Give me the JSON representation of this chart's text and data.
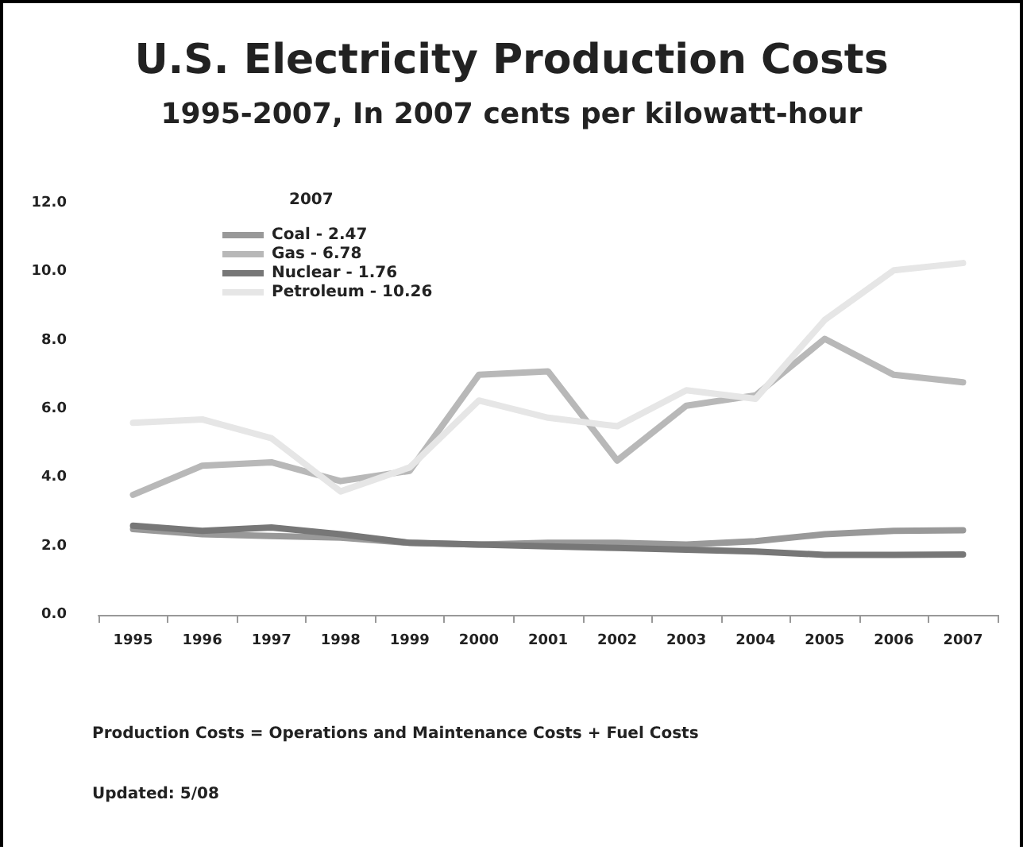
{
  "chart_data": {
    "type": "line",
    "title": "U.S. Electricity Production Costs",
    "subtitle": "1995-2007, In 2007 cents per kilowatt-hour",
    "categories": [
      "1995",
      "1996",
      "1997",
      "1998",
      "1999",
      "2000",
      "2001",
      "2002",
      "2003",
      "2004",
      "2005",
      "2006",
      "2007"
    ],
    "series": [
      {
        "name": "Coal - 2.47",
        "color": "#999999",
        "values": [
          2.5,
          2.35,
          2.3,
          2.25,
          2.1,
          2.05,
          2.1,
          2.1,
          2.05,
          2.15,
          2.35,
          2.45,
          2.47
        ]
      },
      {
        "name": "Gas - 6.78",
        "color": "#b8b8b8",
        "values": [
          3.5,
          4.35,
          4.45,
          3.9,
          4.2,
          7.0,
          7.1,
          4.5,
          6.1,
          6.4,
          8.05,
          7.0,
          6.78
        ]
      },
      {
        "name": "Nuclear - 1.76",
        "color": "#777777",
        "values": [
          2.6,
          2.45,
          2.55,
          2.35,
          2.1,
          2.05,
          2.0,
          1.95,
          1.9,
          1.85,
          1.75,
          1.75,
          1.76
        ]
      },
      {
        "name": "Petroleum - 10.26",
        "color": "#e6e6e6",
        "values": [
          5.6,
          5.7,
          5.15,
          3.6,
          4.3,
          6.25,
          5.75,
          5.5,
          6.55,
          6.3,
          8.6,
          10.05,
          10.26
        ]
      }
    ],
    "legend_title": "2007",
    "legend": "top left",
    "grid": false,
    "marker": "none",
    "line_style": "solid",
    "ylim": [
      0,
      12
    ],
    "yticks": [
      {
        "value": 0,
        "label": "0.0"
      },
      {
        "value": 2,
        "label": "2.0"
      },
      {
        "value": 4,
        "label": "4.0"
      },
      {
        "value": 6,
        "label": "6.0"
      },
      {
        "value": 8,
        "label": "8.0"
      },
      {
        "value": 10,
        "label": "10.0"
      },
      {
        "value": 12,
        "label": "12.0"
      }
    ],
    "annotations": [
      "Production Costs = Operations and Maintenance Costs + Fuel Costs",
      "Updated: 5/08"
    ]
  }
}
